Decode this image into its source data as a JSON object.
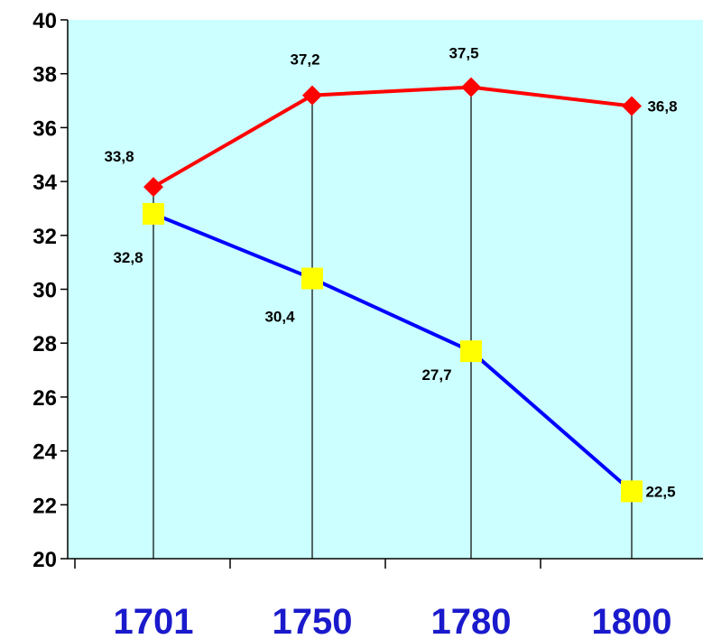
{
  "chart_data": {
    "type": "line",
    "title": "",
    "xlabel": "",
    "ylabel": "",
    "categories": [
      "1701",
      "1750",
      "1780",
      "1800"
    ],
    "ylim": [
      20,
      40
    ],
    "yticks": [
      "20",
      "22",
      "24",
      "26",
      "28",
      "30",
      "32",
      "34",
      "36",
      "38",
      "40"
    ],
    "grid": false,
    "drop_lines": true,
    "series": [
      {
        "values": [
          33.8,
          37.2,
          37.5,
          36.8
        ],
        "labels": [
          "33,8",
          "37,2",
          "37,5",
          "36,8"
        ],
        "color": "#ff0000",
        "marker": "diamond",
        "marker_color": "#ff0000"
      },
      {
        "values": [
          32.8,
          30.4,
          27.7,
          22.5
        ],
        "labels": [
          "32,8",
          "30,4",
          "27,7",
          "22,5"
        ],
        "color": "#0000ff",
        "marker": "square",
        "marker_color": "#ffff00"
      }
    ],
    "colors": {
      "plot_background": "#ccffff",
      "axis": "#000000",
      "tick_label": "#1a1acc"
    }
  }
}
